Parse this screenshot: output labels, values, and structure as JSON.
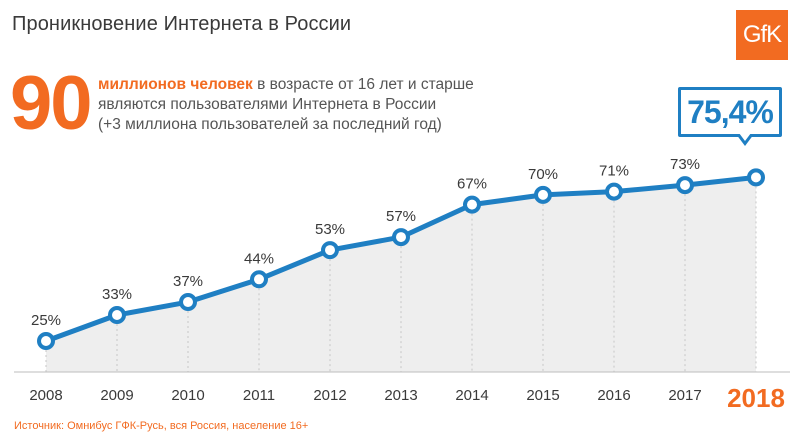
{
  "header": {
    "title": "Проникновение Интернета в России",
    "logo_text": "GfK"
  },
  "highlight": {
    "big_number": "90",
    "line1_accent": "миллионов человек",
    "line1_rest": " в возрасте от 16 лет и старше",
    "line2": "являются пользователями Интернета в России",
    "line3": "(+3 миллиона пользователей за последний год)",
    "callout": "75,4%"
  },
  "footer": {
    "source": "Источник: Омнибус ГФК-Русь, вся Россия, население 16+"
  },
  "colors": {
    "accent": "#f26b21",
    "line": "#1f7fc3",
    "text": "#3a3a3a"
  },
  "chart_data": {
    "type": "line",
    "x": [
      "2008",
      "2009",
      "2010",
      "2011",
      "2012",
      "2013",
      "2014",
      "2015",
      "2016",
      "2017",
      "2018"
    ],
    "series": [
      {
        "values": [
          25,
          33,
          37,
          44,
          53,
          57,
          67,
          70,
          71,
          73,
          75.4
        ],
        "labels": [
          "25%",
          "33%",
          "37%",
          "44%",
          "53%",
          "57%",
          "67%",
          "70%",
          "71%",
          "73%",
          ""
        ]
      }
    ],
    "highlight_category": "2018",
    "grid": true,
    "legend": "none"
  }
}
